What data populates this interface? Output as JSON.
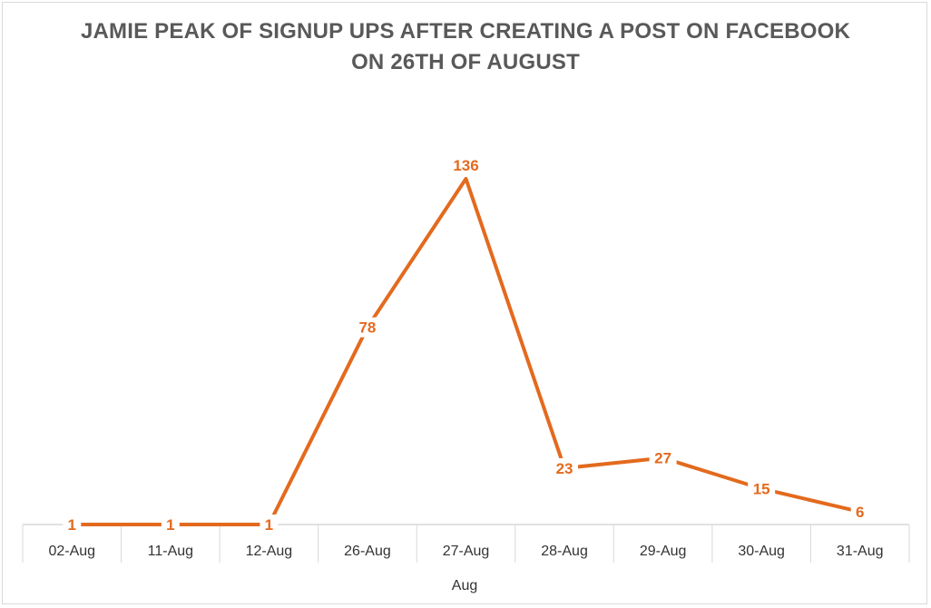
{
  "chart_data": {
    "type": "line",
    "title_lines": [
      "JAMIE PEAK OF SIGNUP UPS AFTER CREATING A POST ON FACEBOOK",
      "ON 26TH OF AUGUST"
    ],
    "categories": [
      "02-Aug",
      "11-Aug",
      "12-Aug",
      "26-Aug",
      "27-Aug",
      "28-Aug",
      "29-Aug",
      "30-Aug",
      "31-Aug"
    ],
    "values": [
      1,
      1,
      1,
      78,
      136,
      23,
      27,
      15,
      6
    ],
    "xlabel": "Aug",
    "ylabel": "",
    "ylim": [
      0,
      140
    ],
    "grid": false,
    "legend": "none",
    "colors": {
      "line": "#e36a1e",
      "axis": "#d9d9d9",
      "title": "#595959"
    }
  }
}
